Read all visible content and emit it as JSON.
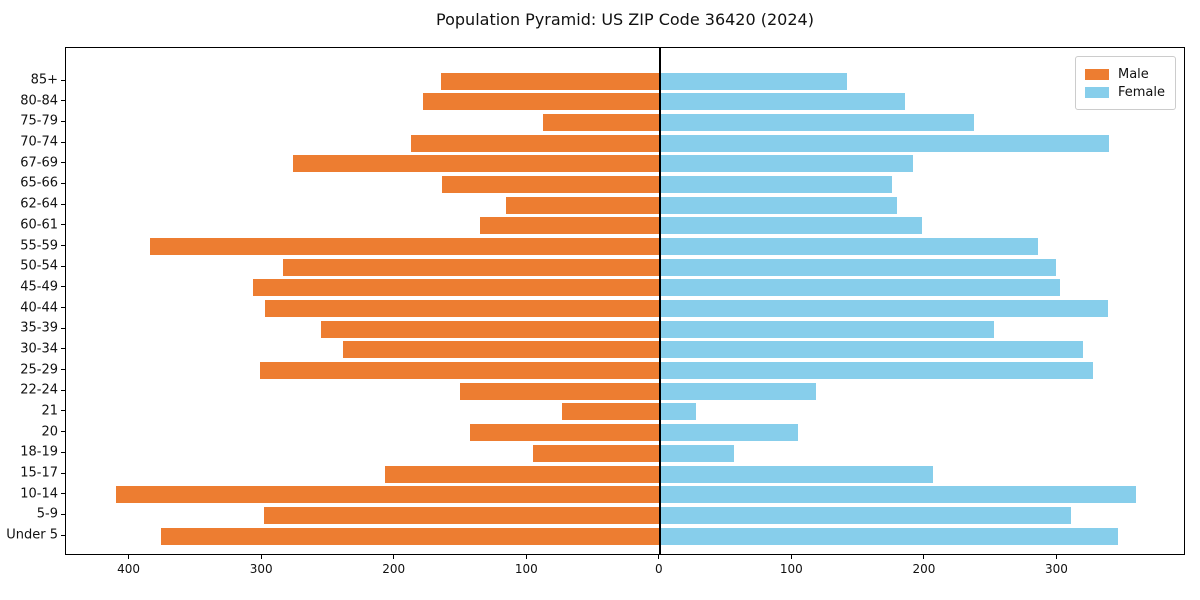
{
  "title": "Population Pyramid: US ZIP Code 36420 (2024)",
  "legend": {
    "position": "upper right",
    "items": [
      {
        "label": "Male",
        "color": "#ED7D31"
      },
      {
        "label": "Female",
        "color": "#87CEEB"
      }
    ]
  },
  "chart_data": {
    "type": "bar",
    "variant": "population-pyramid",
    "title": "Population Pyramid: US ZIP Code 36420 (2024)",
    "orientation": "horizontal",
    "grid": false,
    "legend_position": "upper right",
    "center_line_x": 0,
    "categories": [
      "85+",
      "80-84",
      "75-79",
      "70-74",
      "67-69",
      "65-66",
      "62-64",
      "60-61",
      "55-59",
      "50-54",
      "45-49",
      "40-44",
      "35-39",
      "30-34",
      "25-29",
      "22-24",
      "21",
      "20",
      "18-19",
      "15-17",
      "10-14",
      "5-9",
      "Under 5"
    ],
    "series": [
      {
        "name": "Male",
        "side": "left",
        "color": "#ED7D31",
        "values": [
          165,
          179,
          88,
          188,
          277,
          164,
          116,
          136,
          385,
          284,
          307,
          298,
          256,
          239,
          302,
          151,
          74,
          143,
          96,
          207,
          410,
          299,
          376
        ]
      },
      {
        "name": "Female",
        "side": "right",
        "color": "#87CEEB",
        "values": [
          141,
          185,
          237,
          339,
          191,
          175,
          179,
          198,
          285,
          299,
          302,
          338,
          252,
          319,
          327,
          118,
          27,
          104,
          56,
          206,
          359,
          310,
          346
        ]
      }
    ],
    "x_axis": {
      "tick_values": [
        -400,
        -300,
        -200,
        -100,
        0,
        100,
        200,
        300
      ],
      "tick_labels": [
        "400",
        "300",
        "200",
        "100",
        "0",
        "100",
        "200",
        "300"
      ],
      "xlim": [
        -448,
        397
      ],
      "note": "left half = Male counts, right half = Female counts (labels show absolute values)"
    },
    "y_axis": {
      "label_order": "top-to-bottom"
    }
  }
}
